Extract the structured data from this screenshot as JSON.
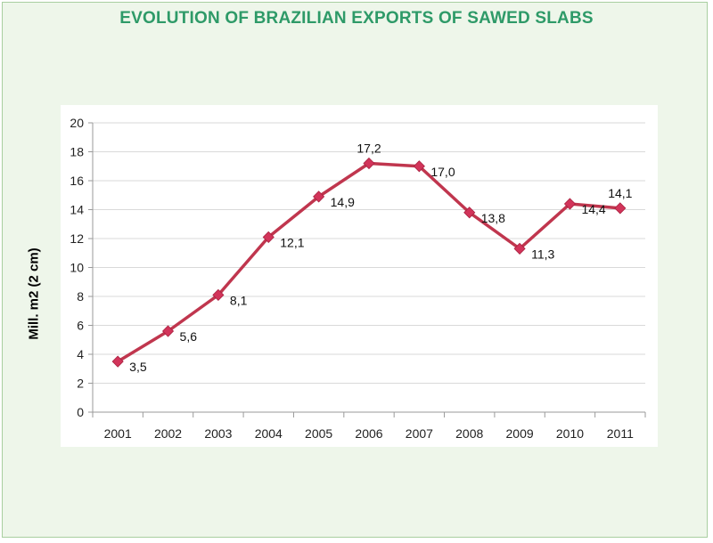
{
  "chart_data": {
    "type": "line",
    "title": "EVOLUTION OF  BRAZILIAN EXPORTS OF SAWED SLABS",
    "ylabel": "Mill. m2 (2 cm)",
    "xlabel": "",
    "categories": [
      "2001",
      "2002",
      "2003",
      "2004",
      "2005",
      "2006",
      "2007",
      "2008",
      "2009",
      "2010",
      "2011"
    ],
    "series": [
      {
        "values": [
          3.5,
          5.6,
          8.1,
          12.1,
          14.9,
          17.2,
          17.0,
          13.8,
          11.3,
          14.4,
          14.1
        ],
        "labels": [
          "3,5",
          "5,6",
          "8,1",
          "12,1",
          "14,9",
          "17,2",
          "17,0",
          "13,8",
          "11,3",
          "14,4",
          "14,1"
        ]
      }
    ],
    "ylim": [
      0,
      20
    ],
    "yticks": [
      "0",
      "2",
      "4",
      "6",
      "8",
      "10",
      "12",
      "14",
      "16",
      "18",
      "20"
    ],
    "grid": true,
    "legend": "none",
    "colors": {
      "line": "#c0364e",
      "marker": "#d2345a",
      "title": "#2e9a68",
      "background": "#eef6ea",
      "border": "#a9cfa0",
      "grid": "#d9d9d9"
    }
  }
}
